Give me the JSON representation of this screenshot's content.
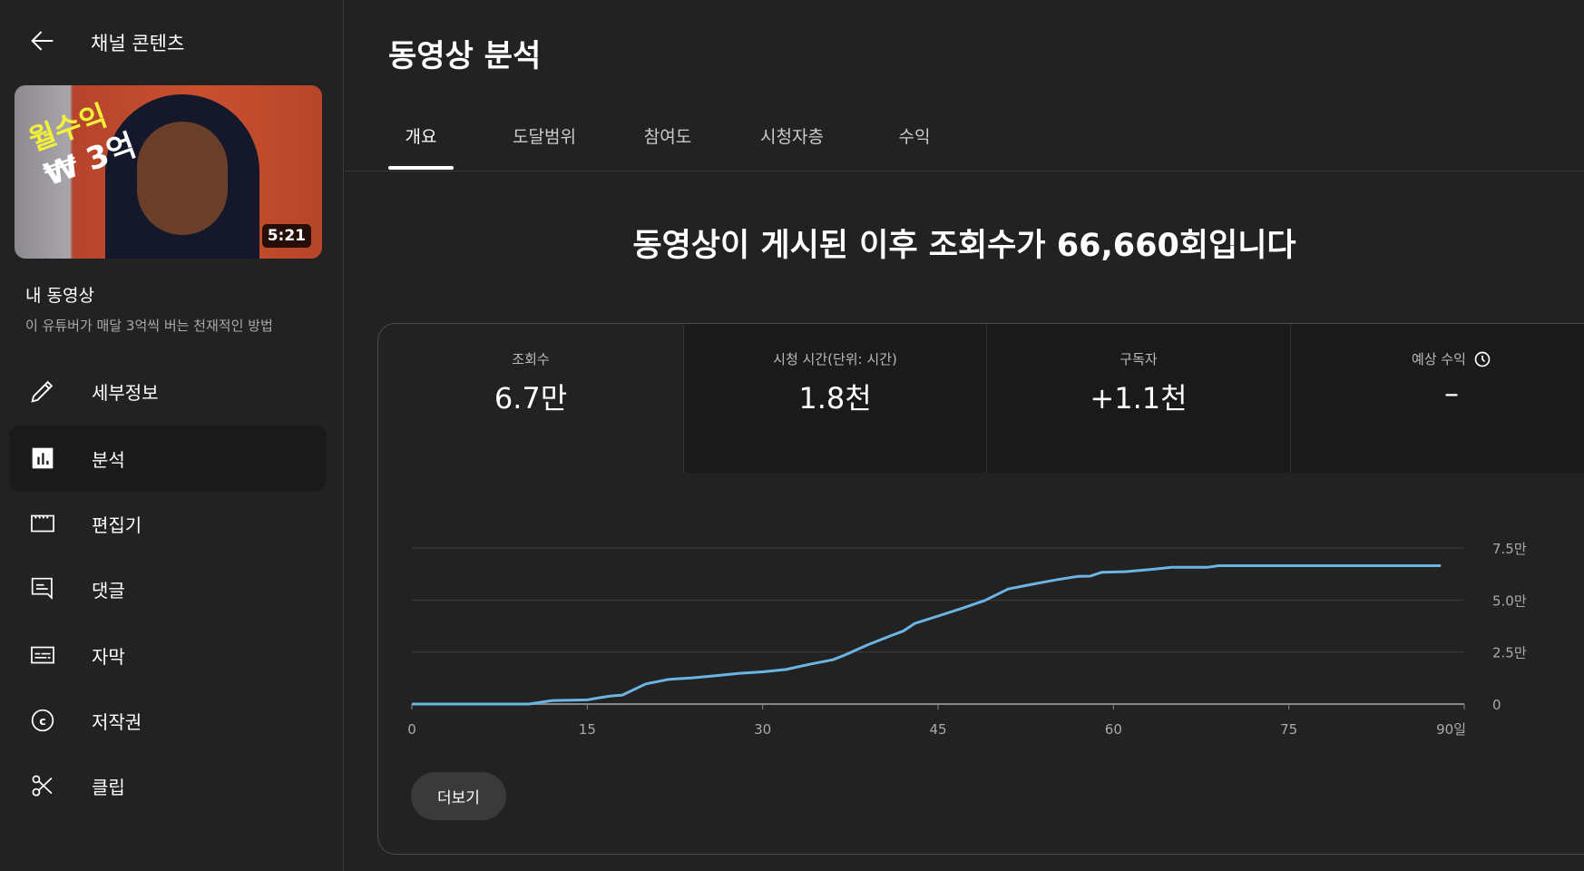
{
  "sidebar": {
    "header": "채널 콘텐츠",
    "thumbnail": {
      "overlay_line1": "월수익",
      "overlay_line2": "₩ 3억",
      "duration": "5:21"
    },
    "section_title": "내 동영상",
    "video_title": "이 유튜버가 매달 3억씩 버는 천재적인 방법",
    "items": [
      {
        "label": "세부정보",
        "icon": "pencil-icon"
      },
      {
        "label": "분석",
        "icon": "analytics-icon",
        "active": true
      },
      {
        "label": "편집기",
        "icon": "clapperboard-icon"
      },
      {
        "label": "댓글",
        "icon": "comment-icon"
      },
      {
        "label": "자막",
        "icon": "subtitles-icon"
      },
      {
        "label": "저작권",
        "icon": "copyright-icon"
      },
      {
        "label": "클립",
        "icon": "scissors-icon"
      }
    ]
  },
  "main": {
    "title": "동영상 분석",
    "tabs": [
      {
        "label": "개요",
        "active": true
      },
      {
        "label": "도달범위"
      },
      {
        "label": "참여도"
      },
      {
        "label": "시청자층"
      },
      {
        "label": "수익"
      }
    ],
    "headline": "동영상이 게시된 이후 조회수가 66,660회입니다",
    "stats": [
      {
        "label": "조회수",
        "value": "6.7만"
      },
      {
        "label": "시청 시간(단위: 시간)",
        "value": "1.8천"
      },
      {
        "label": "구독자",
        "value": "+1.1천"
      },
      {
        "label": "예상 수익",
        "value": "–",
        "icon": "clock-icon"
      }
    ],
    "more_button": "더보기"
  },
  "chart_data": {
    "type": "line",
    "color": "#6cb4e4",
    "x_ticks": [
      "0",
      "15",
      "30",
      "45",
      "60",
      "75",
      "90일"
    ],
    "y_ticks": [
      "0",
      "2.5만",
      "5.0만",
      "7.5만"
    ],
    "xlim": [
      0,
      90
    ],
    "ylim": [
      0,
      75000
    ],
    "grid": true,
    "x": [
      0,
      10,
      12,
      15,
      16,
      17,
      18,
      20,
      22,
      24,
      26,
      28,
      30,
      32,
      34,
      36,
      37,
      39,
      41,
      42,
      43,
      45,
      47,
      49,
      51,
      53,
      55,
      57,
      58,
      59,
      61,
      63,
      65,
      68,
      69,
      88
    ],
    "y": [
      0,
      0,
      1700,
      2000,
      3000,
      3900,
      4300,
      9700,
      11900,
      12600,
      13600,
      14800,
      15500,
      16600,
      19100,
      21300,
      23500,
      28500,
      32900,
      35000,
      38700,
      42300,
      45900,
      49800,
      55300,
      57500,
      59600,
      61400,
      61500,
      63300,
      63600,
      64600,
      65700,
      65700,
      66500,
      66500
    ]
  }
}
